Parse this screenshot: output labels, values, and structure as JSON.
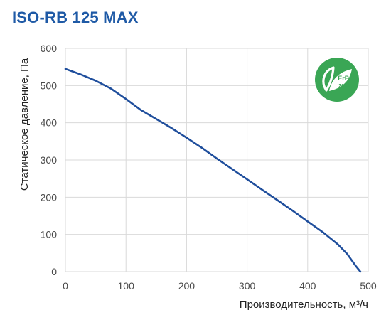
{
  "title": "ISO-RB 125 MAX",
  "badge": {
    "line1": "ErP",
    "line2": "2018",
    "color": "#3aa655"
  },
  "colors": {
    "curve": "#1f4e9c",
    "title": "#1f5aa6",
    "grid": "#d9d9d9"
  },
  "chart_data": {
    "type": "line",
    "title": "ISO-RB 125 MAX",
    "xlabel": "Производительность, м³/ч",
    "ylabel": "Статическое давление, Па",
    "xlim": [
      0,
      500
    ],
    "ylim": [
      0,
      600
    ],
    "xticks": [
      0,
      100,
      200,
      300,
      400,
      500
    ],
    "yticks": [
      0,
      100,
      200,
      300,
      400,
      500,
      600
    ],
    "x_tick_labels": [
      "0",
      "100",
      "200",
      "300",
      "400",
      "500"
    ],
    "y_tick_labels": [
      "0",
      "100",
      "200",
      "300",
      "400",
      "500",
      "600"
    ],
    "grid": true,
    "series": [
      {
        "points": [
          [
            0,
            545
          ],
          [
            25,
            530
          ],
          [
            50,
            513
          ],
          [
            75,
            492
          ],
          [
            100,
            464
          ],
          [
            125,
            434
          ],
          [
            150,
            410
          ],
          [
            175,
            386
          ],
          [
            200,
            360
          ],
          [
            225,
            333
          ],
          [
            250,
            304
          ],
          [
            275,
            276
          ],
          [
            300,
            248
          ],
          [
            325,
            220
          ],
          [
            350,
            192
          ],
          [
            375,
            164
          ],
          [
            400,
            135
          ],
          [
            425,
            106
          ],
          [
            450,
            73
          ],
          [
            465,
            48
          ],
          [
            480,
            14
          ],
          [
            487,
            0
          ]
        ]
      }
    ]
  }
}
